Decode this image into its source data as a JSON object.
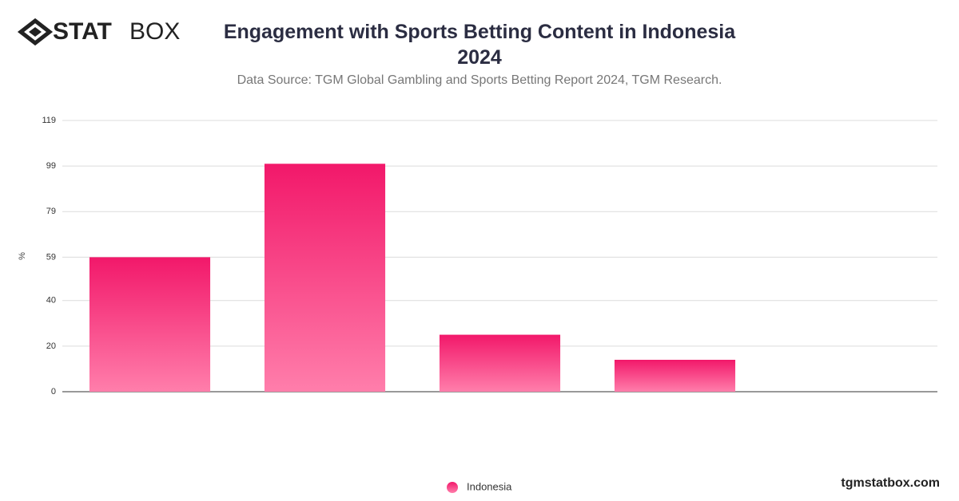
{
  "logo": {
    "bold": "STAT",
    "light": "BOX"
  },
  "footer": "tgmstatbox.com",
  "chart_data": {
    "type": "bar",
    "title": "Engagement with Sports Betting Content in Indonesia 2024",
    "subtitle": "Data Source: TGM Global Gambling and Sports Betting Report 2024, TGM Research.",
    "y_label": "%",
    "categories": [
      null,
      null,
      null,
      null,
      null
    ],
    "series": [
      {
        "name": "Indonesia",
        "color": "#f2186a",
        "values": [
          59,
          100,
          25,
          14,
          null
        ]
      }
    ],
    "ylim": [
      0,
      119
    ],
    "yticks": [
      0,
      20,
      40,
      59,
      79,
      99,
      119
    ],
    "grid": true,
    "legend": "bottom"
  }
}
